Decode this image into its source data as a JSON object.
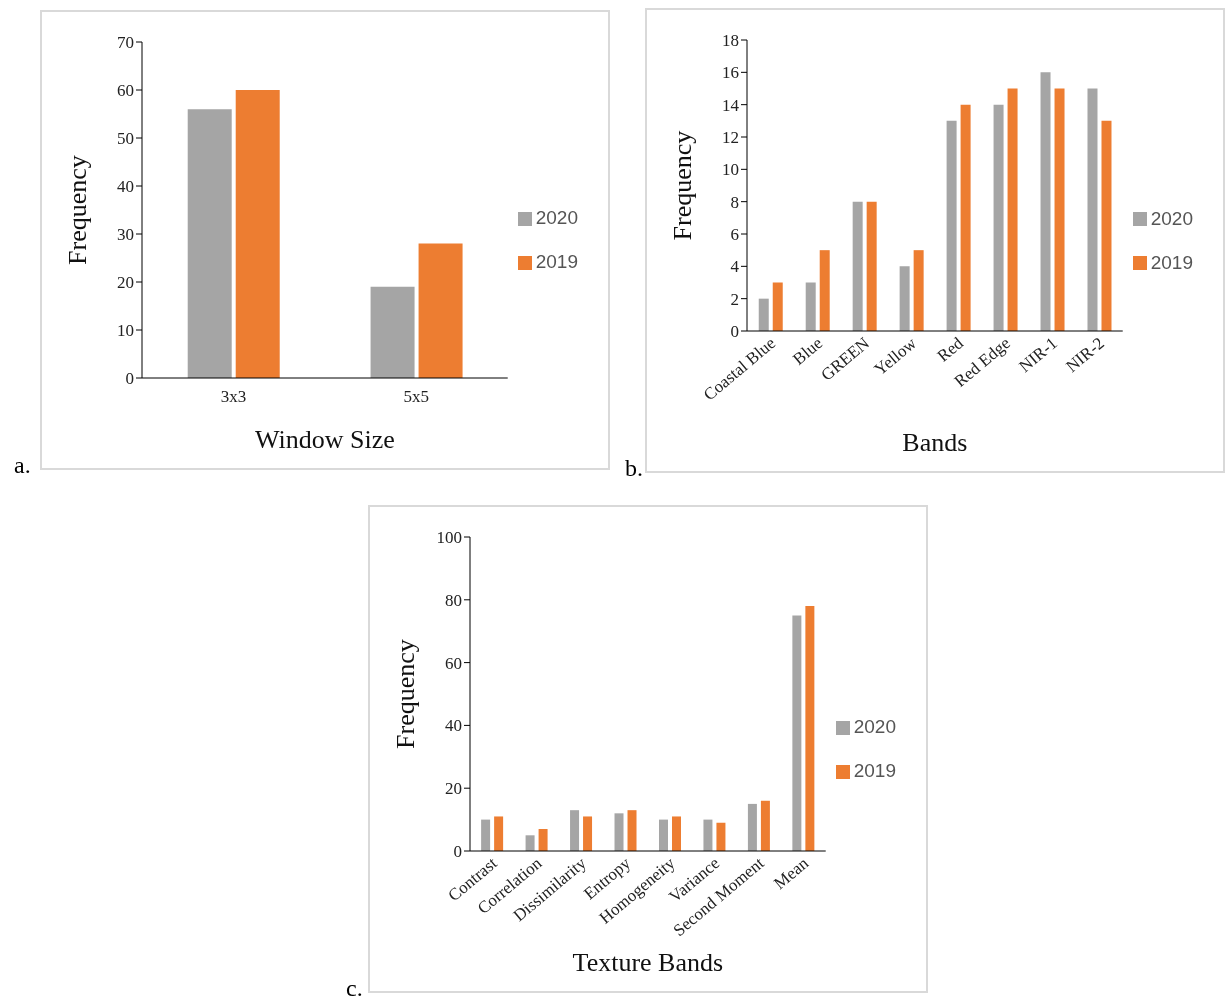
{
  "chart_data": [
    {
      "type": "bar",
      "xlabel": "Window Size",
      "ylabel": "Frequency",
      "categories": [
        "3x3",
        "5x5"
      ],
      "series": [
        {
          "name": "2020",
          "color": "#a5a5a5",
          "values": [
            56,
            19
          ]
        },
        {
          "name": "2019",
          "color": "#ed7d31",
          "values": [
            60,
            28
          ]
        }
      ],
      "ylim": [
        0,
        70
      ],
      "yticks": [
        0,
        10,
        20,
        30,
        40,
        50,
        60,
        70
      ],
      "legend": "right",
      "annotations": [
        "a."
      ]
    },
    {
      "type": "bar",
      "xlabel": "Bands",
      "ylabel": "Frequency",
      "categories": [
        "Coastal Blue",
        "Blue",
        "GREEN",
        "Yellow",
        "Red",
        "Red Edge",
        "NIR-1",
        "NIR-2"
      ],
      "series": [
        {
          "name": "2020",
          "color": "#a5a5a5",
          "values": [
            2,
            3,
            8,
            4,
            13,
            14,
            16,
            15
          ]
        },
        {
          "name": "2019",
          "color": "#ed7d31",
          "values": [
            3,
            5,
            8,
            5,
            14,
            15,
            15,
            13
          ]
        }
      ],
      "ylim": [
        0,
        18
      ],
      "yticks": [
        0,
        2,
        4,
        6,
        8,
        10,
        12,
        14,
        16,
        18
      ],
      "legend": "right",
      "annotations": [
        "b."
      ]
    },
    {
      "type": "bar",
      "xlabel": "Texture Bands",
      "ylabel": "Frequency",
      "categories": [
        "Contrast",
        "Correlation",
        "Dissimilarity",
        "Entropy",
        "Homogeneity",
        "Variance",
        "Second Moment",
        "Mean"
      ],
      "series": [
        {
          "name": "2020",
          "color": "#a5a5a5",
          "values": [
            10,
            5,
            13,
            12,
            10,
            10,
            15,
            75
          ]
        },
        {
          "name": "2019",
          "color": "#ed7d31",
          "values": [
            11,
            7,
            11,
            13,
            11,
            9,
            16,
            78
          ]
        }
      ],
      "ylim": [
        0,
        100
      ],
      "yticks": [
        0,
        20,
        40,
        60,
        80,
        100
      ],
      "legend": "right",
      "annotations": [
        "c."
      ]
    }
  ]
}
